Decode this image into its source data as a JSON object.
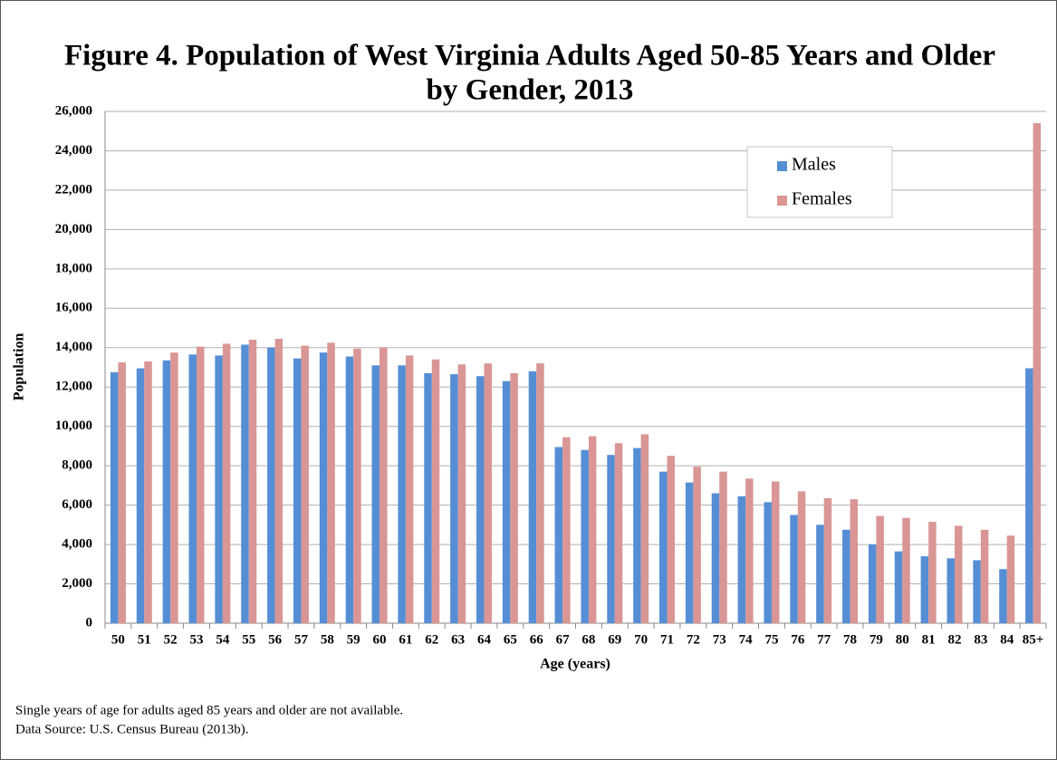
{
  "chart_data": {
    "type": "bar",
    "title": [
      "Figure 4. Population of West Virginia Adults Aged 50-85 Years and Older",
      "by Gender, 2013"
    ],
    "x_label": "Age (years)",
    "y_label": "Population",
    "categories": [
      "50",
      "51",
      "52",
      "53",
      "54",
      "55",
      "56",
      "57",
      "58",
      "59",
      "60",
      "61",
      "62",
      "63",
      "64",
      "65",
      "66",
      "67",
      "68",
      "69",
      "70",
      "71",
      "72",
      "73",
      "74",
      "75",
      "76",
      "77",
      "78",
      "79",
      "80",
      "81",
      "82",
      "83",
      "84",
      "85+"
    ],
    "series": [
      {
        "name": "Males",
        "color": "#558ed5",
        "values": [
          12750,
          12950,
          13350,
          13650,
          13600,
          14150,
          14000,
          13450,
          13750,
          13550,
          13100,
          13100,
          12700,
          12650,
          12550,
          12300,
          12800,
          8950,
          8800,
          8550,
          8900,
          7700,
          7150,
          6600,
          6450,
          6150,
          5500,
          5000,
          4750,
          4000,
          3650,
          3400,
          3300,
          3200,
          2750,
          12950
        ]
      },
      {
        "name": "Females",
        "color": "#d99694",
        "values": [
          13250,
          13300,
          13750,
          14050,
          14200,
          14400,
          14450,
          14100,
          14250,
          13950,
          14000,
          13600,
          13400,
          13150,
          13200,
          12700,
          13200,
          9450,
          9500,
          9150,
          9600,
          8500,
          7950,
          7700,
          7350,
          7200,
          6700,
          6350,
          6300,
          5450,
          5350,
          5150,
          4950,
          4750,
          4450,
          25400
        ]
      }
    ],
    "ylim": [
      0,
      26000
    ],
    "yticks": [
      0,
      {
        "value": 2000,
        "label": "2,000"
      },
      {
        "value": 4000,
        "label": "4,000"
      },
      {
        "value": 6000,
        "label": "6,000"
      },
      {
        "value": 8000,
        "label": "8,000"
      },
      {
        "value": 10000,
        "label": "10,000"
      },
      {
        "value": 12000,
        "label": "12,000"
      },
      {
        "value": 14000,
        "label": "14,000"
      },
      {
        "value": 16000,
        "label": "16,000"
      },
      {
        "value": 18000,
        "label": "18,000"
      },
      {
        "value": 20000,
        "label": "20,000"
      },
      {
        "value": 22000,
        "label": "22,000"
      },
      {
        "value": 24000,
        "label": "24,000"
      },
      {
        "value": 26000,
        "label": "26,000"
      }
    ],
    "grid": true,
    "legend": "upper-right",
    "notes": [
      "Single years of age for adults aged 85 years and older are not available.",
      "Data Source: U.S. Census Bureau (2013b)."
    ]
  }
}
